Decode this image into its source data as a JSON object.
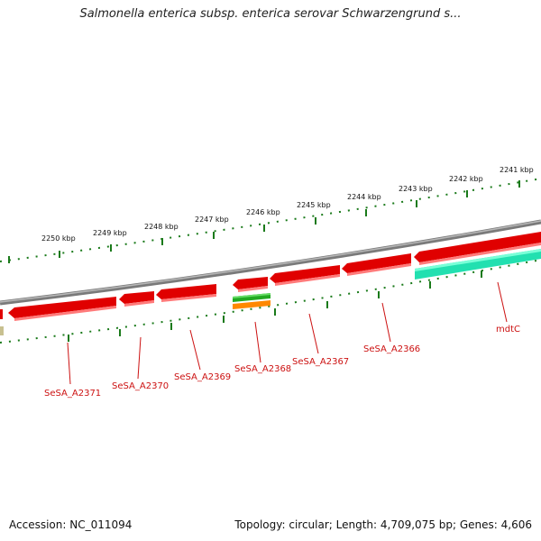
{
  "title": "Salmonella enterica subsp. enterica serovar Schwarzengrund s...",
  "footer": {
    "accession": "Accession: NC_011094",
    "summary": "Topology: circular; Length: 4,709,075 bp; Genes: 4,606"
  },
  "scale_labels": [
    "2241 kbp",
    "2242 kbp",
    "2243 kbp",
    "2244 kbp",
    "2245 kbp",
    "2246 kbp",
    "2247 kbp",
    "2248 kbp",
    "2249 kbp",
    "2250 kbp"
  ],
  "gene_labels": [
    "SeSA_A2371",
    "SeSA_A2370",
    "SeSA_A2369",
    "SeSA_A2368",
    "SeSA_A2367",
    "SeSA_A2366",
    "mdtC"
  ],
  "colors": {
    "backbone": "#8a8a8a",
    "gene_red": "#e00000",
    "gene_teal": "#22e0b0",
    "gene_green": "#22aa22",
    "gene_orange": "#ff8800",
    "tick_green": "#1a7a1a",
    "label_red": "#cc1111"
  }
}
